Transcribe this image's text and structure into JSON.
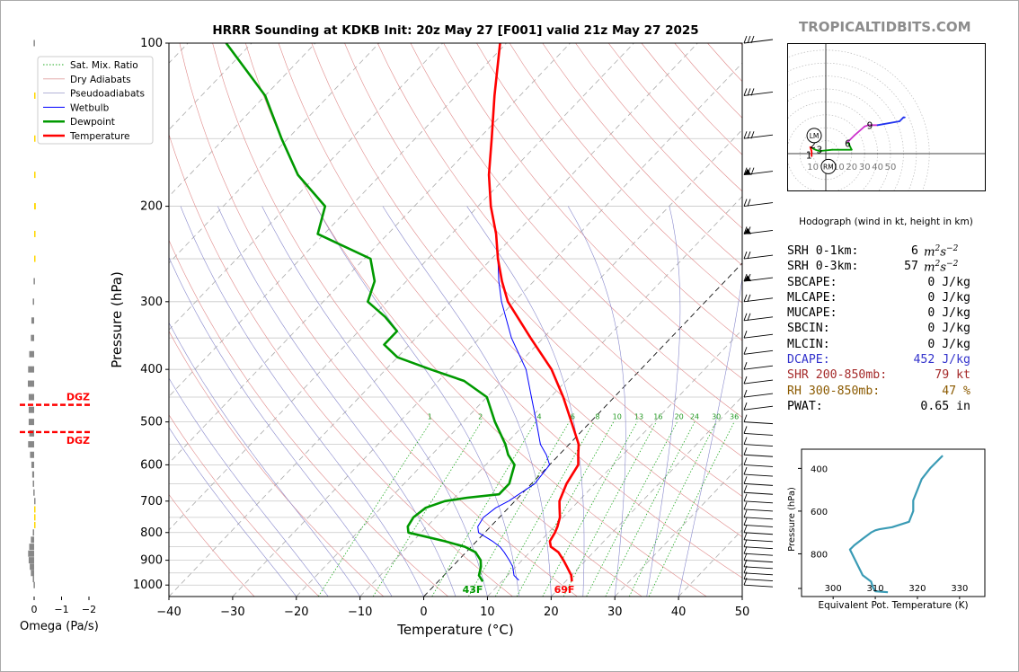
{
  "title": "HRRR Sounding at KDKB Init: 20z May 27 [F001] valid 21z May 27 2025",
  "watermark": "TROPICALTIDBITS.COM",
  "main": {
    "xlabel": "Temperature (°C)",
    "ylabel": "Pressure (hPa)",
    "x_ticks": [
      -40,
      -30,
      -20,
      -10,
      0,
      10,
      20,
      30,
      40,
      50
    ],
    "y_ticks": [
      100,
      200,
      300,
      400,
      500,
      600,
      700,
      800,
      900,
      1000
    ],
    "mixing_ratio_labels": [
      "1",
      "2",
      "4",
      "6",
      "8",
      "10",
      "13",
      "16",
      "20",
      "24",
      "30",
      "36"
    ],
    "surface_temp_label": "69F",
    "surface_dew_label": "43F",
    "legend": [
      "Sat. Mix. Ratio",
      "Dry Adiabats",
      "Pseudoadiabats",
      "Wetbulb",
      "Dewpoint",
      "Temperature"
    ]
  },
  "omega": {
    "xlabel": "Omega (Pa/s)",
    "ticks": [
      "0",
      "−1",
      "−2"
    ],
    "dgz_label": "DGZ"
  },
  "hodograph": {
    "caption": "Hodograph (wind in kt, height in km)",
    "ring_labels": [
      "10",
      "10",
      "20",
      "30",
      "40",
      "50"
    ],
    "height_labels": [
      "1",
      "2",
      "3",
      "6",
      "9"
    ],
    "lm_label": "LM",
    "rm_label": "RM"
  },
  "theta_e": {
    "xlabel": "Equivalent Pot. Temperature (K)",
    "ylabel": "Pressure (hPa)",
    "x_ticks": [
      "300",
      "310",
      "320",
      "330"
    ],
    "y_ticks": [
      "400",
      "600",
      "800"
    ]
  },
  "stats": [
    {
      "label": "SRH 0-1km:",
      "value": "6",
      "unit": "m2s-2",
      "color": "#000000"
    },
    {
      "label": "SRH 0-3km:",
      "value": "57",
      "unit": "m2s-2",
      "color": "#000000"
    },
    {
      "label": "SBCAPE:",
      "value": "0 J/kg",
      "color": "#000000"
    },
    {
      "label": "MLCAPE:",
      "value": "0 J/kg",
      "color": "#000000"
    },
    {
      "label": "MUCAPE:",
      "value": "0 J/kg",
      "color": "#000000"
    },
    {
      "label": "SBCIN:",
      "value": "0 J/kg",
      "color": "#000000"
    },
    {
      "label": "MLCIN:",
      "value": "0 J/kg",
      "color": "#000000"
    },
    {
      "label": "DCAPE:",
      "value": "452 J/kg",
      "color": "#3333cc"
    },
    {
      "label": "SHR 200-850mb:",
      "value": "79 kt",
      "color": "#a52a2a"
    },
    {
      "label": "RH 300-850mb:",
      "value": "47 %",
      "color": "#8b5a00"
    },
    {
      "label": "PWAT:",
      "value": "0.65 in",
      "color": "#000000"
    }
  ],
  "colors": {
    "temperature": "#ff0000",
    "dewpoint": "#009900",
    "wetbulb": "#0000ff",
    "theta_e": "#3a9bb5",
    "dgz": "#ff0000",
    "omega_down": "#888888",
    "omega_up": "#ffd700"
  },
  "chart_data": [
    {
      "type": "line",
      "chart": "skew-t",
      "title": "HRRR Sounding at KDKB Init: 20z May 27 [F001] valid 21z May 27 2025",
      "xlabel": "Temperature (°C)",
      "ylabel": "Pressure (hPa)",
      "xlim": [
        -40,
        50
      ],
      "ylim": [
        1050,
        100
      ],
      "y_scale": "log",
      "series": [
        {
          "name": "Temperature",
          "pressure": [
            985,
            960,
            925,
            900,
            870,
            850,
            830,
            800,
            780,
            750,
            720,
            700,
            650,
            600,
            575,
            550,
            500,
            450,
            400,
            350,
            300,
            275,
            250,
            225,
            200,
            175,
            150,
            125,
            100
          ],
          "temp": [
            21,
            20,
            18,
            16.5,
            14.5,
            12.5,
            11.5,
            11,
            10.5,
            9.5,
            8,
            7,
            5.5,
            4.5,
            3,
            1.5,
            -3,
            -8,
            -14,
            -22,
            -31,
            -35,
            -39,
            -43,
            -48,
            -53,
            -58,
            -64,
            -71
          ]
        },
        {
          "name": "Dewpoint",
          "pressure": [
            985,
            960,
            925,
            900,
            870,
            850,
            830,
            800,
            780,
            750,
            720,
            700,
            690,
            680,
            650,
            600,
            575,
            550,
            500,
            450,
            420,
            400,
            380,
            360,
            340,
            320,
            300,
            275,
            250,
            225,
            200,
            175,
            150,
            125,
            100
          ],
          "temp": [
            7,
            5.5,
            4.5,
            3.5,
            1.5,
            -1,
            -5,
            -12,
            -13,
            -13.5,
            -13,
            -11,
            -8,
            -3.5,
            -3.5,
            -5.5,
            -8,
            -10,
            -15,
            -20,
            -26,
            -33,
            -40,
            -44,
            -44,
            -48,
            -53,
            -55,
            -59,
            -71,
            -74,
            -83,
            -91,
            -100,
            -114
          ]
        },
        {
          "name": "Wetbulb",
          "pressure": [
            980,
            960,
            925,
            900,
            870,
            850,
            830,
            800,
            780,
            750,
            720,
            700,
            650,
            600,
            575,
            550,
            500,
            450,
            400,
            350,
            300,
            275,
            250,
            225,
            200,
            175,
            150,
            125,
            100
          ],
          "temp": [
            12.5,
            11,
            9.5,
            8,
            6,
            4.5,
            2.5,
            -1,
            -2,
            -2.5,
            -2,
            -1,
            0.5,
            0,
            -2,
            -4.5,
            -8.5,
            -13,
            -18,
            -25,
            -32,
            -35.5,
            -39,
            -43,
            -48,
            -53,
            -58,
            -64,
            -71
          ]
        }
      ]
    },
    {
      "type": "bar",
      "chart": "omega",
      "xlabel": "Omega (Pa/s)",
      "xlim": [
        0.2,
        -2.5
      ],
      "pressure": [
        100,
        125,
        150,
        175,
        200,
        225,
        250,
        275,
        300,
        325,
        350,
        375,
        400,
        425,
        450,
        475,
        500,
        525,
        550,
        575,
        600,
        625,
        650,
        675,
        700,
        725,
        750,
        775,
        800,
        825,
        850,
        875,
        900,
        925,
        950,
        975,
        1000
      ],
      "omega": [
        0.02,
        -0.01,
        -0.02,
        -0.05,
        -0.06,
        -0.05,
        -0.03,
        0.02,
        0.05,
        0.1,
        0.12,
        0.18,
        0.22,
        0.23,
        0.2,
        0.2,
        0.2,
        0.18,
        0.22,
        0.15,
        0.1,
        0.07,
        0.05,
        0.03,
        0.0,
        -0.02,
        -0.03,
        -0.01,
        0.05,
        0.12,
        0.18,
        0.22,
        0.2,
        0.16,
        0.12,
        0.05,
        0.02
      ],
      "dgz_pressures": [
        465,
        522
      ]
    },
    {
      "type": "line",
      "chart": "hodograph",
      "xlabel": "Hodograph (wind in kt, height in km)",
      "u_kt": [
        -11,
        -11,
        -12,
        -10,
        -8,
        -5,
        5,
        20,
        17,
        22,
        30,
        33,
        40,
        57,
        60,
        61
      ],
      "v_kt": [
        -2,
        2,
        5,
        4,
        3,
        2,
        3,
        3,
        9,
        14,
        21,
        22,
        22,
        25,
        28,
        28
      ],
      "height_km": [
        0,
        0.5,
        1,
        2,
        3,
        3,
        4,
        5,
        6,
        7,
        8,
        9,
        9,
        11,
        12,
        13
      ],
      "labels": [
        {
          "text": "1",
          "u": -13,
          "v": -1
        },
        {
          "text": "2",
          "u": -10,
          "v": 7
        },
        {
          "text": "3",
          "u": -5,
          "v": 3
        },
        {
          "text": "6",
          "u": 17,
          "v": 8
        },
        {
          "text": "9",
          "u": 34,
          "v": 22
        }
      ],
      "lm": {
        "u": -9,
        "v": 14
      },
      "rm": {
        "u": 2,
        "v": -10
      }
    },
    {
      "type": "line",
      "chart": "theta-e",
      "xlabel": "Equivalent Pot. Temperature (K)",
      "ylabel": "Pressure (hPa)",
      "theta_e": [
        313,
        310,
        309.5,
        309,
        307,
        306,
        305,
        304,
        305,
        307,
        309,
        310,
        311,
        314,
        318,
        319,
        319,
        320,
        321,
        323,
        326
      ],
      "pressure": [
        980,
        975,
        960,
        930,
        900,
        860,
        820,
        780,
        760,
        730,
        700,
        690,
        685,
        675,
        650,
        600,
        550,
        500,
        450,
        400,
        340
      ]
    }
  ]
}
